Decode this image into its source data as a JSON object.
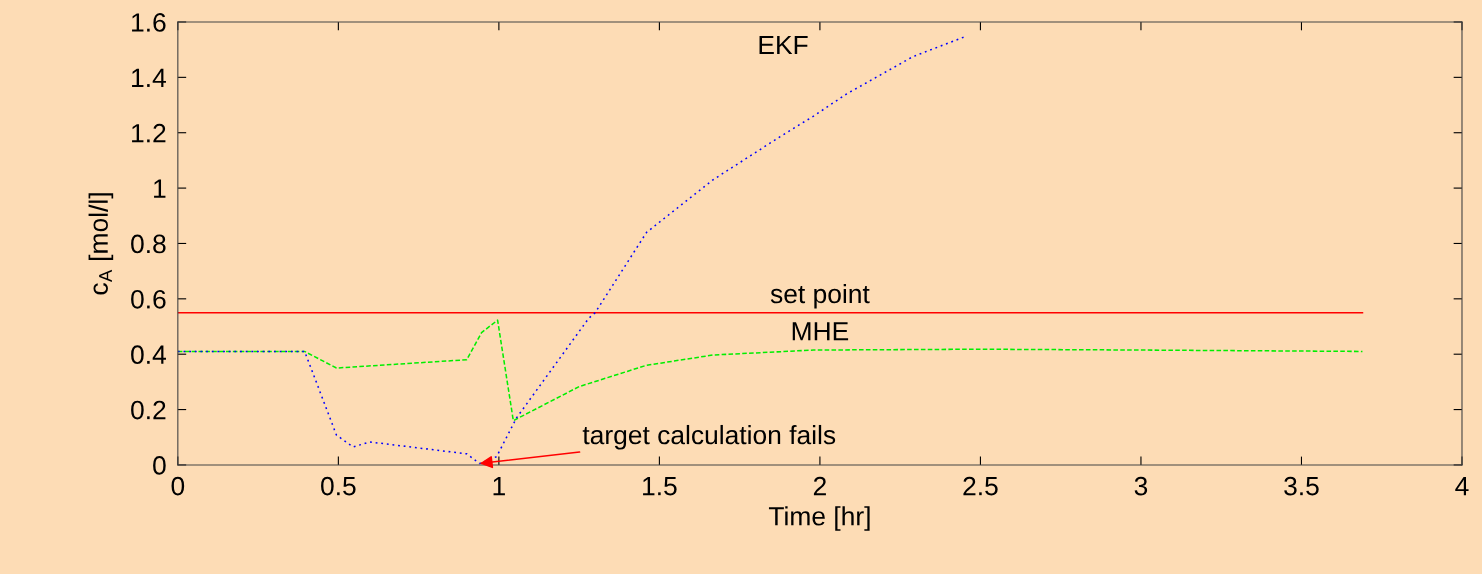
{
  "chart_data": {
    "type": "line",
    "xlabel": "Time [hr]",
    "ylabel": "c$_{A}$ [mol/l]",
    "xlim": [
      0,
      4
    ],
    "xticks": [
      0,
      0.5,
      1,
      1.5,
      2,
      2.5,
      3,
      3.5,
      4
    ],
    "ylim": [
      0,
      1.6
    ],
    "yticks": [
      0,
      0.2,
      0.4,
      0.6,
      0.8,
      1,
      1.2,
      1.4,
      1.6
    ],
    "grid": false,
    "legend": false,
    "series": [
      {
        "name": "set point",
        "color": "#ff0000",
        "line_style": "solid",
        "x": [
          0,
          3.69
        ],
        "values": [
          0.55,
          0.55
        ]
      },
      {
        "name": "MHE",
        "color": "#00ee00",
        "line_style": "dashed",
        "x": [
          0,
          0.395,
          0.494,
          0.9,
          0.946,
          0.996,
          1.045,
          1.25,
          1.46,
          1.667,
          1.98,
          2.5,
          3.0,
          3.69
        ],
        "values": [
          0.41,
          0.41,
          0.35,
          0.38,
          0.478,
          0.523,
          0.16,
          0.283,
          0.36,
          0.397,
          0.415,
          0.418,
          0.415,
          0.41
        ]
      },
      {
        "name": "EKF",
        "color": "#0000ff",
        "line_style": "dotted",
        "x": [
          0,
          0.395,
          0.494,
          0.546,
          0.598,
          0.9,
          0.94,
          0.993,
          1.055,
          1.28,
          1.3,
          1.46,
          1.667,
          1.875,
          1.98,
          2.083,
          2.29,
          2.45
        ],
        "values": [
          0.41,
          0.41,
          0.108,
          0.065,
          0.083,
          0.04,
          0.005,
          0.03,
          0.17,
          0.53,
          0.55,
          0.84,
          1.03,
          1.185,
          1.26,
          1.34,
          1.475,
          1.546
        ]
      }
    ],
    "annotations": [
      {
        "text": "target calculation fails",
        "x": 0.94,
        "y": 0.005
      }
    ]
  }
}
